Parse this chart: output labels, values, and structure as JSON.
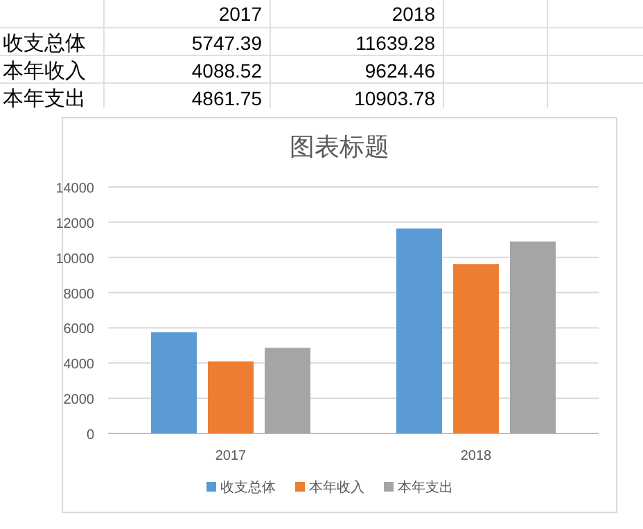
{
  "chart_data": {
    "type": "bar",
    "title": "图表标题",
    "categories": [
      "2017",
      "2018"
    ],
    "series": [
      {
        "name": "收支总体",
        "color": "#5b9bd5",
        "values": [
          5747.39,
          11639.28
        ]
      },
      {
        "name": "本年收入",
        "color": "#ed7d31",
        "values": [
          4088.52,
          9624.46
        ]
      },
      {
        "name": "本年支出",
        "color": "#a5a5a5",
        "values": [
          4861.75,
          10903.78
        ]
      }
    ],
    "ylim": [
      0,
      14000
    ],
    "yticks": [
      0,
      2000,
      4000,
      6000,
      8000,
      10000,
      12000,
      14000
    ],
    "grid": "y",
    "legend": "bottom",
    "data_labels": true
  }
}
